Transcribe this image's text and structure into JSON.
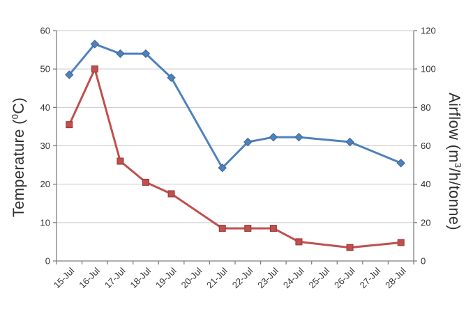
{
  "chart_data": {
    "type": "line",
    "title": "",
    "x_labels": [
      "15-Jul",
      "16-Jul",
      "17-Jul",
      "18-Jul",
      "19-Jul",
      "20-Jul",
      "21-Jul",
      "22-Jul",
      "23-Jul",
      "24-Jul",
      "25-Jul",
      "26-Jul",
      "27-Jul",
      "28-Jul"
    ],
    "series": [
      {
        "name": "Airflow (m3/h/tonne)",
        "axis": "right",
        "marker": "diamond",
        "color": "#4F81BD",
        "marker_border": "#3A6494",
        "values": [
          97,
          113,
          108,
          108,
          95.5,
          null,
          48.5,
          62,
          64.5,
          64.5,
          null,
          62,
          null,
          51
        ]
      },
      {
        "name": "Temperature (0C)",
        "axis": "left",
        "marker": "square",
        "color": "#C0504D",
        "marker_border": "#953735",
        "values": [
          35.5,
          50,
          26,
          20.5,
          17.5,
          null,
          8.5,
          8.5,
          8.5,
          5,
          null,
          3.5,
          null,
          4.8
        ]
      }
    ],
    "left_axis": {
      "title_prefix": "Temperature (",
      "title_sup": "0",
      "title_suffix": "C)",
      "min": 0,
      "max": 60,
      "step": 10,
      "tick_labels": [
        "0",
        "10",
        "20",
        "30",
        "40",
        "50",
        "60"
      ]
    },
    "right_axis": {
      "title_prefix": "Airflow (m",
      "title_sup": "3",
      "title_suffix": "/h/tonne)",
      "min": 0,
      "max": 120,
      "step": 20,
      "tick_labels": [
        "0",
        "20",
        "40",
        "60",
        "80",
        "100",
        "120"
      ]
    },
    "grid": true,
    "legend": "none",
    "style": {
      "background": "#ffffff",
      "gridline_color": "#c9c9c9",
      "axis_color": "#7f7f7f",
      "tick_label_color": "#333333",
      "line_width": 3
    }
  }
}
